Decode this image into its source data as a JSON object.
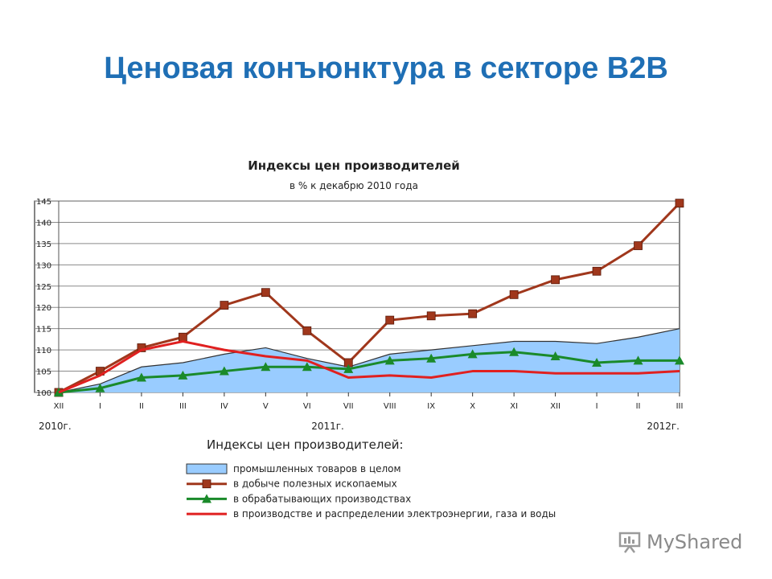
{
  "slide": {
    "title": "Ценовая конъюнктура в секторе B2B"
  },
  "watermark": {
    "text": "MyShared"
  },
  "chart_data": {
    "type": "area+line",
    "title": "Индексы цен производителей",
    "subtitle": "в % к декабрю 2010 года",
    "categories": [
      "XII",
      "I",
      "II",
      "III",
      "IV",
      "V",
      "VI",
      "VII",
      "VIII",
      "IX",
      "X",
      "XI",
      "XII",
      "I",
      "II",
      "III"
    ],
    "year_labels": [
      "2010г.",
      "2011г.",
      "2012г."
    ],
    "ylim": [
      100,
      145
    ],
    "yticks": [
      100,
      105,
      110,
      115,
      120,
      125,
      130,
      135,
      140,
      145
    ],
    "grid": true,
    "legend_title": "Индексы цен производителей:",
    "series": [
      {
        "name": "промышленных товаров в целом",
        "type": "area",
        "color": "#99ccff",
        "stroke": "#333333",
        "values": [
          100,
          102,
          106,
          107,
          109,
          110.5,
          108,
          106,
          109,
          110,
          111,
          112,
          112,
          111.5,
          113,
          115
        ]
      },
      {
        "name": "в добыче полезных ископаемых",
        "type": "line",
        "marker": "square",
        "color": "#a0371c",
        "values": [
          100,
          105,
          110.5,
          113,
          120.5,
          123.5,
          114.5,
          107,
          117,
          118,
          118.5,
          123,
          126.5,
          128.5,
          134.5,
          144.5
        ]
      },
      {
        "name": "в обрабатывающих производствах",
        "type": "line",
        "marker": "triangle",
        "color": "#1a8a2a",
        "values": [
          100,
          101,
          103.5,
          104,
          105,
          106,
          106,
          105.5,
          107.5,
          108,
          109,
          109.5,
          108.5,
          107,
          107.5,
          107.5
        ]
      },
      {
        "name": "в производстве и распределении электроэнергии, газа и воды",
        "type": "line",
        "marker": "none",
        "color": "#e02020",
        "values": [
          100,
          104,
          110,
          112,
          110,
          108.5,
          107.5,
          103.5,
          104,
          103.5,
          105,
          105,
          104.5,
          104.5,
          104.5,
          105
        ]
      }
    ]
  }
}
